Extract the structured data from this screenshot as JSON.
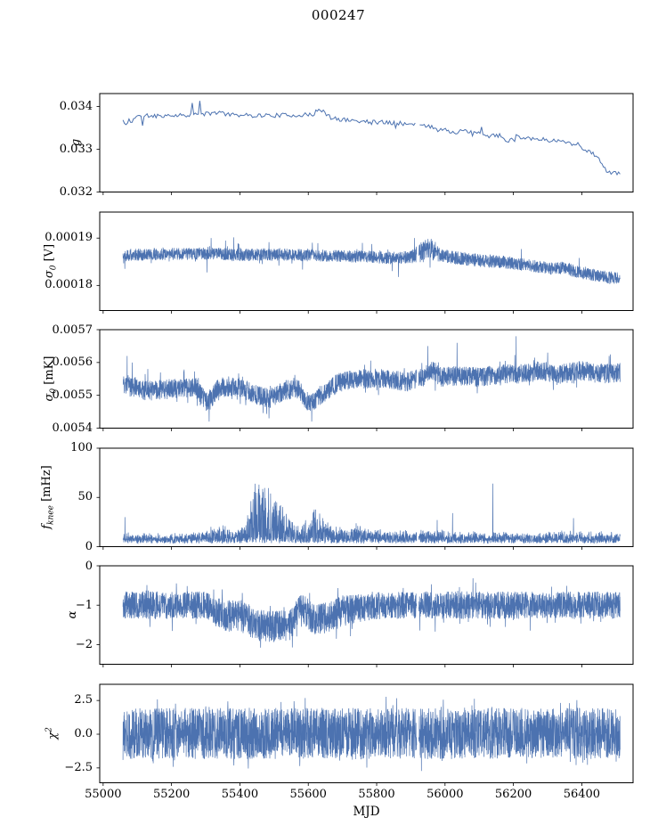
{
  "chart_data": {
    "type": "line",
    "title": "000247",
    "xlabel": "MJD",
    "xlim": [
      54990,
      56550
    ],
    "x_start": 55058,
    "x_end": 56512,
    "gaps": [
      [
        55917,
        55923
      ]
    ],
    "line_color": "#4c72b0",
    "axis_color": "#000000",
    "background": "#ffffff",
    "xticks": [
      {
        "v": 55000,
        "label": "55000"
      },
      {
        "v": 55200,
        "label": "55200"
      },
      {
        "v": 55400,
        "label": "55400"
      },
      {
        "v": 55600,
        "label": "55600"
      },
      {
        "v": 55800,
        "label": "55800"
      },
      {
        "v": 56000,
        "label": "56000"
      },
      {
        "v": 56200,
        "label": "56200"
      },
      {
        "v": 56400,
        "label": "56400"
      }
    ],
    "panels": [
      {
        "name": "g",
        "ylabel_math": "g",
        "ylabel_sub": "",
        "ylabel_sup": "",
        "ylabel_unit": "",
        "ylim": [
          0.032,
          0.0343
        ],
        "yticks": [
          {
            "v": 0.034,
            "label": "0.034"
          },
          {
            "v": 0.033,
            "label": "0.033"
          },
          {
            "v": 0.032,
            "label": "0.032"
          }
        ],
        "series": {
          "style": "line",
          "seed": 11,
          "points": 330,
          "stroke_width": 1.0,
          "trend": [
            [
              55058,
              0.03368
            ],
            [
              55066,
              0.03352
            ],
            [
              55074,
              0.03372
            ],
            [
              55082,
              0.0336
            ],
            [
              55095,
              0.03378
            ],
            [
              55150,
              0.03378
            ],
            [
              55230,
              0.0338
            ],
            [
              55290,
              0.03381
            ],
            [
              55335,
              0.03386
            ],
            [
              55365,
              0.03382
            ],
            [
              55420,
              0.03379
            ],
            [
              55500,
              0.03379
            ],
            [
              55585,
              0.0338
            ],
            [
              55612,
              0.0338
            ],
            [
              55625,
              0.03392
            ],
            [
              55645,
              0.03387
            ],
            [
              55668,
              0.03372
            ],
            [
              55700,
              0.03369
            ],
            [
              55780,
              0.03364
            ],
            [
              55860,
              0.03362
            ],
            [
              55905,
              0.03357
            ],
            [
              55950,
              0.03354
            ],
            [
              55990,
              0.03347
            ],
            [
              56020,
              0.0334
            ],
            [
              56060,
              0.03342
            ],
            [
              56100,
              0.03336
            ],
            [
              56130,
              0.0333
            ],
            [
              56160,
              0.03333
            ],
            [
              56185,
              0.03318
            ],
            [
              56205,
              0.0333
            ],
            [
              56240,
              0.03327
            ],
            [
              56280,
              0.03323
            ],
            [
              56320,
              0.0332
            ],
            [
              56360,
              0.03317
            ],
            [
              56390,
              0.03308
            ],
            [
              56420,
              0.03295
            ],
            [
              56450,
              0.0328
            ],
            [
              56470,
              0.0325
            ],
            [
              56490,
              0.03243
            ],
            [
              56512,
              0.03246
            ]
          ],
          "spread": [
            [
              55058,
              5e-05
            ]
          ],
          "tail_prob": 0.06,
          "tail_scale": 8e-05,
          "spikes": [
            [
              55117,
              0.03355
            ],
            [
              55260,
              0.03408
            ],
            [
              55283,
              0.03413
            ],
            [
              56108,
              0.03352
            ]
          ]
        }
      },
      {
        "name": "sigma0_V",
        "ylabel_math": "σ",
        "ylabel_sub": "0",
        "ylabel_sup": "",
        "ylabel_unit": " [V]",
        "ylim": [
          0.0001747,
          0.0001955
        ],
        "yticks": [
          {
            "v": 0.00019,
            "label": "0.00019"
          },
          {
            "v": 0.00018,
            "label": "0.00018"
          }
        ],
        "series": {
          "style": "band",
          "seed": 22,
          "points": 3000,
          "stroke_width": 0.7,
          "trend": [
            [
              55058,
              0.0001864
            ],
            [
              55150,
              0.0001866
            ],
            [
              55250,
              0.0001867
            ],
            [
              55320,
              0.0001868
            ],
            [
              55380,
              0.0001864
            ],
            [
              55450,
              0.0001865
            ],
            [
              55520,
              0.0001865
            ],
            [
              55600,
              0.0001864
            ],
            [
              55680,
              0.0001862
            ],
            [
              55760,
              0.0001861
            ],
            [
              55840,
              0.0001858
            ],
            [
              55900,
              0.000186
            ],
            [
              55925,
              0.0001866
            ],
            [
              55945,
              0.0001878
            ],
            [
              55960,
              0.0001876
            ],
            [
              55980,
              0.0001866
            ],
            [
              56010,
              0.0001861
            ],
            [
              56060,
              0.0001856
            ],
            [
              56110,
              0.0001852
            ],
            [
              56160,
              0.000185
            ],
            [
              56210,
              0.0001846
            ],
            [
              56260,
              0.0001841
            ],
            [
              56310,
              0.0001836
            ],
            [
              56345,
              0.0001838
            ],
            [
              56380,
              0.000183
            ],
            [
              56420,
              0.0001824
            ],
            [
              56460,
              0.0001819
            ],
            [
              56512,
              0.0001814
            ]
          ],
          "spread": [
            [
              55058,
              1.3e-06
            ],
            [
              55900,
              1.3e-06
            ],
            [
              55935,
              2.4e-06
            ],
            [
              55965,
              2.2e-06
            ],
            [
              55990,
              1.4e-06
            ],
            [
              56512,
              1.3e-06
            ]
          ],
          "tail_prob": 0.03,
          "tail_scale": 3e-06,
          "spikes": [
            [
              55950,
              0.0001888
            ],
            [
              56160,
              0.000186
            ],
            [
              56350,
              0.0001843
            ]
          ]
        }
      },
      {
        "name": "sigma0_mK",
        "ylabel_math": "σ",
        "ylabel_sub": "0",
        "ylabel_sup": "",
        "ylabel_unit": " [mK]",
        "ylim": [
          0.0054,
          0.0057
        ],
        "yticks": [
          {
            "v": 0.0057,
            "label": "0.0057"
          },
          {
            "v": 0.0056,
            "label": "0.0056"
          },
          {
            "v": 0.0055,
            "label": "0.0055"
          },
          {
            "v": 0.0054,
            "label": "0.0054"
          }
        ],
        "series": {
          "style": "band",
          "seed": 33,
          "points": 3000,
          "stroke_width": 0.7,
          "trend": [
            [
              55058,
              0.00553
            ],
            [
              55120,
              0.005515
            ],
            [
              55200,
              0.00552
            ],
            [
              55270,
              0.005525
            ],
            [
              55305,
              0.005475
            ],
            [
              55340,
              0.005525
            ],
            [
              55400,
              0.005525
            ],
            [
              55450,
              0.0055
            ],
            [
              55490,
              0.00549
            ],
            [
              55530,
              0.005515
            ],
            [
              55570,
              0.00552
            ],
            [
              55605,
              0.00547
            ],
            [
              55640,
              0.005505
            ],
            [
              55690,
              0.00554
            ],
            [
              55760,
              0.00555
            ],
            [
              55830,
              0.00555
            ],
            [
              55890,
              0.00554
            ],
            [
              55930,
              0.005555
            ],
            [
              55965,
              0.005575
            ],
            [
              55990,
              0.005555
            ],
            [
              56040,
              0.00556
            ],
            [
              56100,
              0.005555
            ],
            [
              56160,
              0.005565
            ],
            [
              56220,
              0.005565
            ],
            [
              56280,
              0.005575
            ],
            [
              56340,
              0.005565
            ],
            [
              56400,
              0.005575
            ],
            [
              56460,
              0.005565
            ],
            [
              56512,
              0.00557
            ]
          ],
          "spread": [
            [
              55058,
              3e-05
            ]
          ],
          "tail_prob": 0.06,
          "tail_scale": 4e-05,
          "spikes": [
            [
              55070,
              0.00562
            ],
            [
              55085,
              0.0056
            ],
            [
              55310,
              0.00542
            ],
            [
              55485,
              0.00543
            ],
            [
              55610,
              0.00542
            ],
            [
              55950,
              0.00565
            ],
            [
              56035,
              0.00566
            ],
            [
              56208,
              0.00568
            ],
            [
              56300,
              0.00563
            ],
            [
              56480,
              0.00562
            ]
          ]
        }
      },
      {
        "name": "fknee",
        "ylabel_math": "f",
        "ylabel_sub": "knee",
        "ylabel_sup": "",
        "ylabel_unit": " [mHz]",
        "ylim": [
          0,
          100
        ],
        "yticks": [
          {
            "v": 100,
            "label": "100"
          },
          {
            "v": 50,
            "label": "50"
          },
          {
            "v": 0,
            "label": "0"
          }
        ],
        "series": {
          "style": "spiky",
          "seed": 44,
          "points": 3000,
          "stroke_width": 0.7,
          "jitter": 2.5,
          "trend": [
            [
              55058,
              5.5
            ],
            [
              56512,
              5.5
            ]
          ],
          "spread": [
            [
              55058,
              7
            ],
            [
              55120,
              6
            ],
            [
              55200,
              6
            ],
            [
              55260,
              8
            ],
            [
              55290,
              10
            ],
            [
              55320,
              13
            ],
            [
              55350,
              15
            ],
            [
              55375,
              11
            ],
            [
              55395,
              13
            ],
            [
              55415,
              16
            ],
            [
              55428,
              40
            ],
            [
              55440,
              58
            ],
            [
              55455,
              63
            ],
            [
              55470,
              60
            ],
            [
              55485,
              55
            ],
            [
              55500,
              46
            ],
            [
              55515,
              40
            ],
            [
              55530,
              32
            ],
            [
              55550,
              22
            ],
            [
              55575,
              16
            ],
            [
              55595,
              22
            ],
            [
              55612,
              30
            ],
            [
              55625,
              34
            ],
            [
              55640,
              24
            ],
            [
              55660,
              16
            ],
            [
              55690,
              13
            ],
            [
              55720,
              13
            ],
            [
              55740,
              17
            ],
            [
              55770,
              11
            ],
            [
              55810,
              10
            ],
            [
              55850,
              10
            ],
            [
              55880,
              9
            ],
            [
              55905,
              9
            ],
            [
              55935,
              9
            ],
            [
              55970,
              11
            ],
            [
              56000,
              9
            ],
            [
              56050,
              8
            ],
            [
              56100,
              8
            ],
            [
              56150,
              8
            ],
            [
              56200,
              8
            ],
            [
              56260,
              7
            ],
            [
              56310,
              8
            ],
            [
              56360,
              9
            ],
            [
              56410,
              8
            ],
            [
              56460,
              8
            ],
            [
              56512,
              8
            ]
          ],
          "tail_prob": 0.0,
          "tail_scale": 0,
          "spikes": [
            [
              55064,
              30
            ],
            [
              55745,
              21
            ],
            [
              55930,
              17
            ],
            [
              55977,
              27
            ],
            [
              56022,
              34
            ],
            [
              56140,
              64
            ],
            [
              56376,
              29
            ],
            [
              56450,
              14
            ]
          ]
        }
      },
      {
        "name": "alpha",
        "ylabel_math": "α",
        "ylabel_sub": "",
        "ylabel_sup": "",
        "ylabel_unit": "",
        "ylim": [
          -2.5,
          0
        ],
        "yticks": [
          {
            "v": 0,
            "label": "0"
          },
          {
            "v": -1,
            "label": "−1"
          },
          {
            "v": -2,
            "label": "−2"
          }
        ],
        "series": {
          "style": "band",
          "seed": 55,
          "points": 3200,
          "stroke_width": 0.7,
          "trend": [
            [
              55058,
              -1.0
            ],
            [
              55300,
              -1.0
            ],
            [
              55345,
              -1.25
            ],
            [
              55415,
              -1.3
            ],
            [
              55440,
              -1.5
            ],
            [
              55545,
              -1.55
            ],
            [
              55565,
              -1.2
            ],
            [
              55590,
              -1.1
            ],
            [
              55610,
              -1.35
            ],
            [
              55655,
              -1.3
            ],
            [
              55700,
              -1.15
            ],
            [
              55770,
              -1.05
            ],
            [
              55820,
              -1.0
            ],
            [
              56512,
              -1.0
            ]
          ],
          "spread": [
            [
              55058,
              0.35
            ],
            [
              55320,
              0.35
            ],
            [
              55350,
              0.42
            ],
            [
              55700,
              0.4
            ],
            [
              55760,
              0.35
            ],
            [
              56512,
              0.35
            ]
          ],
          "tail_prob": 0.06,
          "tail_scale": 0.35,
          "spikes": []
        }
      },
      {
        "name": "chi2",
        "ylabel_math": "χ",
        "ylabel_sub": "",
        "ylabel_sup": "2",
        "ylabel_unit": "",
        "ylim": [
          -3.6,
          3.7
        ],
        "yticks": [
          {
            "v": 2.5,
            "label": "2.5"
          },
          {
            "v": 0,
            "label": "0.0"
          },
          {
            "v": -2.5,
            "label": "−2.5"
          }
        ],
        "series": {
          "style": "band",
          "seed": 66,
          "points": 3200,
          "stroke_width": 0.7,
          "trend": [
            [
              55058,
              0.05
            ],
            [
              56512,
              0.05
            ]
          ],
          "spread": [
            [
              55058,
              1.9
            ]
          ],
          "tail_prob": 0.08,
          "tail_scale": 1.1,
          "spikes": []
        }
      }
    ]
  }
}
